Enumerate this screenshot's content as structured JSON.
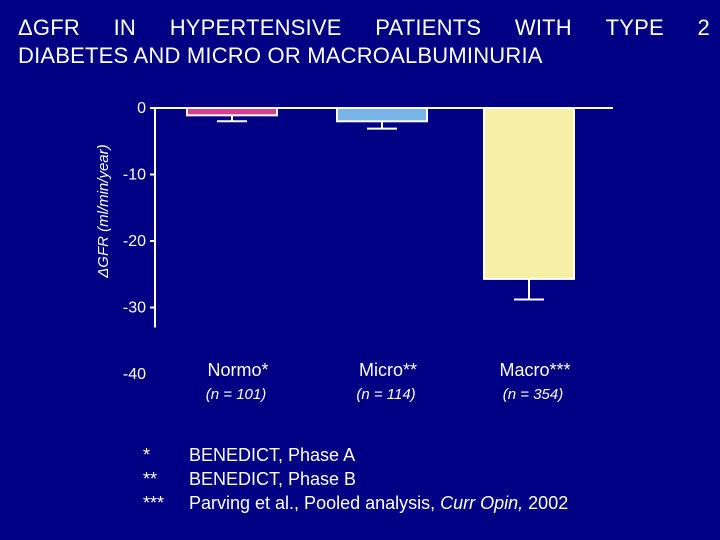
{
  "title": {
    "line1_words": [
      "ΔGFR",
      "IN",
      "HYPERTENSIVE",
      "PATIENTS",
      "WITH",
      "TYPE",
      "2"
    ],
    "line2": "DIABETES AND MICRO OR MACROALBUMINURIA"
  },
  "chart_data": {
    "type": "bar",
    "ylabel": "ΔGFR (ml/min/year)",
    "ylim": [
      -40,
      0
    ],
    "yticks": [
      0,
      -10,
      -20,
      -30,
      -40
    ],
    "ytick_labels": [
      "0",
      "-10",
      "-20",
      "-30",
      "-40"
    ],
    "categories": [
      "Normo*",
      "Micro**",
      "Macro***"
    ],
    "subcategories": [
      "(n = 101)",
      "(n = 114)",
      "(n = 354)"
    ],
    "values": [
      -1.1,
      -2.0,
      -25.7
    ],
    "errors": [
      0.9,
      1.1,
      3.1
    ],
    "bar_colors": [
      "#d63f8f",
      "#79b4e6",
      "#f5f0a6"
    ],
    "grid": false
  },
  "footnotes": [
    {
      "mark": "*",
      "text": "BENEDICT, Phase A"
    },
    {
      "mark": "**",
      "text": "BENEDICT, Phase B"
    },
    {
      "mark": "***",
      "text": "Parving et al., Pooled analysis, ",
      "italic": "Curr Opin,",
      "tail": " 2002"
    }
  ]
}
